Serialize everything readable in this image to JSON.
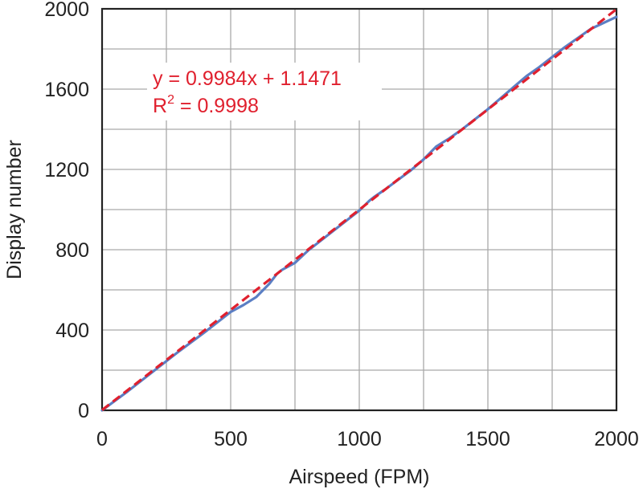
{
  "chart_data": {
    "type": "line",
    "xlabel": "Airspeed (FPM)",
    "ylabel": "Display number",
    "xlim": [
      0,
      2000
    ],
    "ylim": [
      0,
      2000
    ],
    "grid": true,
    "x_ticks": [
      0,
      500,
      1000,
      1500,
      2000
    ],
    "x_tick_labels": [
      "0",
      "500",
      "1000",
      "1500",
      "2000"
    ],
    "y_ticks": [
      0,
      400,
      800,
      1200,
      1600,
      2000
    ],
    "y_tick_labels": [
      "0",
      "400",
      "800",
      "1200",
      "1600",
      "2000"
    ],
    "x_minor_grid": [
      250,
      750,
      1250,
      1750
    ],
    "y_minor_grid": [
      200,
      600,
      1000,
      1400,
      1800
    ],
    "annotation": {
      "equation": "y = 0.9984x + 1.1471",
      "r2_prefix": "R",
      "r2_sup": "2",
      "r2_value": " = 0.9998",
      "color": "#e0202e"
    },
    "series": [
      {
        "style": "solid",
        "color": "#5b7fc4",
        "x": [
          0,
          100,
          200,
          300,
          400,
          500,
          550,
          600,
          650,
          680,
          700,
          750,
          800,
          900,
          1000,
          1040,
          1060,
          1100,
          1200,
          1250,
          1300,
          1350,
          1400,
          1500,
          1600,
          1650,
          1700,
          1800,
          1900,
          2000
        ],
        "y": [
          0,
          95,
          195,
          295,
          390,
          490,
          525,
          565,
          630,
          680,
          700,
          735,
          795,
          895,
          995,
          1045,
          1065,
          1100,
          1195,
          1250,
          1315,
          1355,
          1400,
          1500,
          1610,
          1665,
          1710,
          1810,
          1900,
          1960
        ]
      },
      {
        "style": "dashed",
        "color": "#e0202e",
        "x": [
          0,
          2000
        ],
        "y": [
          1.1471,
          1997.9471
        ]
      }
    ]
  }
}
